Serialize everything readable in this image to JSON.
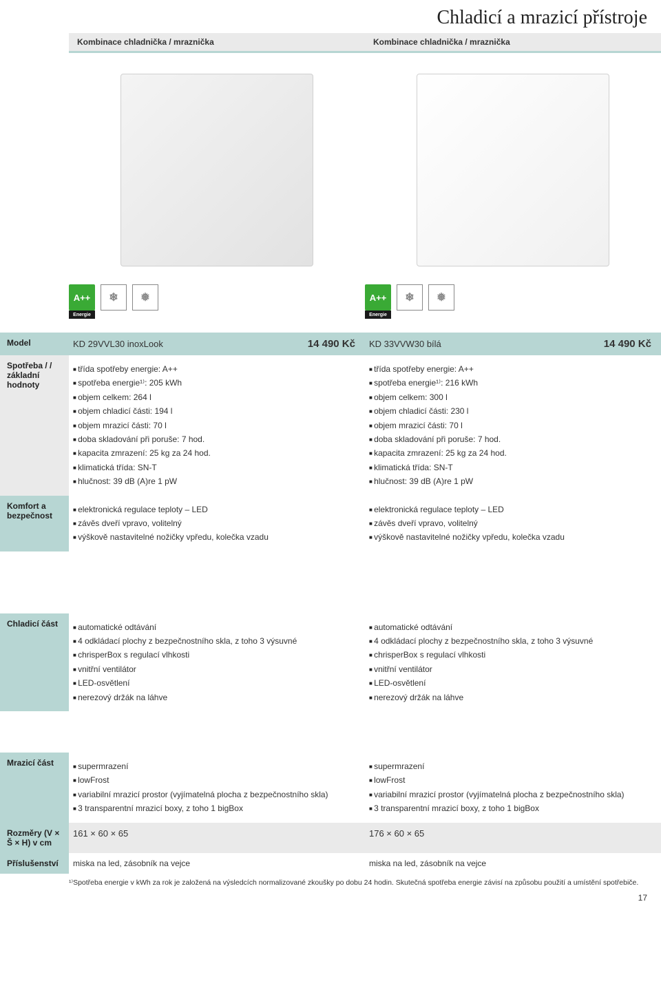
{
  "colors": {
    "accent": "#b7d6d3",
    "gray_bg": "#eaeaea",
    "energy_green": "#3aaa35",
    "text": "#333333"
  },
  "page_title": "Chladicí a mrazicí přístroje",
  "subheader_left": "Kombinace chladnička / mraznička",
  "subheader_right": "Kombinace chladnička / mraznička",
  "badges": {
    "energy_class": "A++",
    "energy_label": "Energie",
    "crisper": "crisperBox",
    "lowfrost": "lowFrost"
  },
  "labels": {
    "model": "Model",
    "spotreba": "Spotřeba / / základní hodnoty",
    "komfort": "Komfort a bezpečnost",
    "chladici": "Chladicí část",
    "mrazici": "Mrazicí část",
    "rozmery": "Rozměry (V × Š × H) v cm",
    "prislusenstvi": "Příslušenství"
  },
  "products": [
    {
      "name": "KD 29VVL30 inoxLook",
      "price": "14 490 Kč",
      "spotreba": [
        "třída spotřeby energie: A++",
        "spotřeba energie¹⁾: 205 kWh",
        "objem celkem: 264 l",
        "objem chladicí části: 194 l",
        "objem mrazicí části: 70 l",
        "doba skladování při poruše: 7 hod.",
        "kapacita zmrazení: 25 kg za 24 hod.",
        "klimatická třída: SN-T",
        "hlučnost: 39 dB (A)re 1 pW"
      ],
      "komfort": [
        "elektronická regulace teploty – LED",
        "závěs dveří vpravo, volitelný",
        "výškově nastavitelné nožičky vpředu, kolečka vzadu"
      ],
      "chladici": [
        "automatické odtávání",
        "4 odkládací plochy z bezpečnostního skla, z toho 3 výsuvné",
        "chrisperBox s regulací vlhkosti",
        "vnitřní ventilátor",
        "LED-osvětlení",
        "nerezový držák na láhve"
      ],
      "mrazici": [
        "supermrazení",
        "lowFrost",
        "variabilní mrazicí prostor (vyjímatelná plocha z bezpečnostního skla)",
        "3 transparentní mrazicí boxy, z toho 1 bigBox"
      ],
      "rozmery": "161 × 60 × 65",
      "prislusenstvi": "miska na led, zásobník na vejce"
    },
    {
      "name": "KD 33VVW30 bílá",
      "price": "14 490 Kč",
      "spotreba": [
        "třída spotřeby energie: A++",
        "spotřeba energie¹⁾: 216 kWh",
        "objem celkem: 300 l",
        "objem chladicí části: 230 l",
        "objem mrazicí části: 70 l",
        "doba skladování při poruše: 7 hod.",
        "kapacita zmrazení: 25 kg za 24 hod.",
        "klimatická třída: SN-T",
        "hlučnost: 39 dB (A)re 1 pW"
      ],
      "komfort": [
        "elektronická regulace teploty – LED",
        "závěs dveří vpravo, volitelný",
        "výškově nastavitelné nožičky vpředu, kolečka vzadu"
      ],
      "chladici": [
        "automatické odtávání",
        "4 odkládací plochy z bezpečnostního skla, z toho 3 výsuvné",
        "chrisperBox s regulací vlhkosti",
        "vnitřní ventilátor",
        "LED-osvětlení",
        "nerezový držák na láhve"
      ],
      "mrazici": [
        "supermrazení",
        "lowFrost",
        "variabilní mrazicí prostor (vyjímatelná plocha z bezpečnostního skla)",
        "3 transparentní mrazicí boxy, z toho 1 bigBox"
      ],
      "rozmery": "176 × 60 × 65",
      "prislusenstvi": "miska na led, zásobník na vejce"
    }
  ],
  "footnote": "¹⁾Spotřeba energie v kWh za rok je založená na výsledcích normalizované zkoušky po dobu 24 hodin. Skutečná spotřeba energie závisí na způsobu použití a umístění spotřebiče.",
  "page_number": "17"
}
